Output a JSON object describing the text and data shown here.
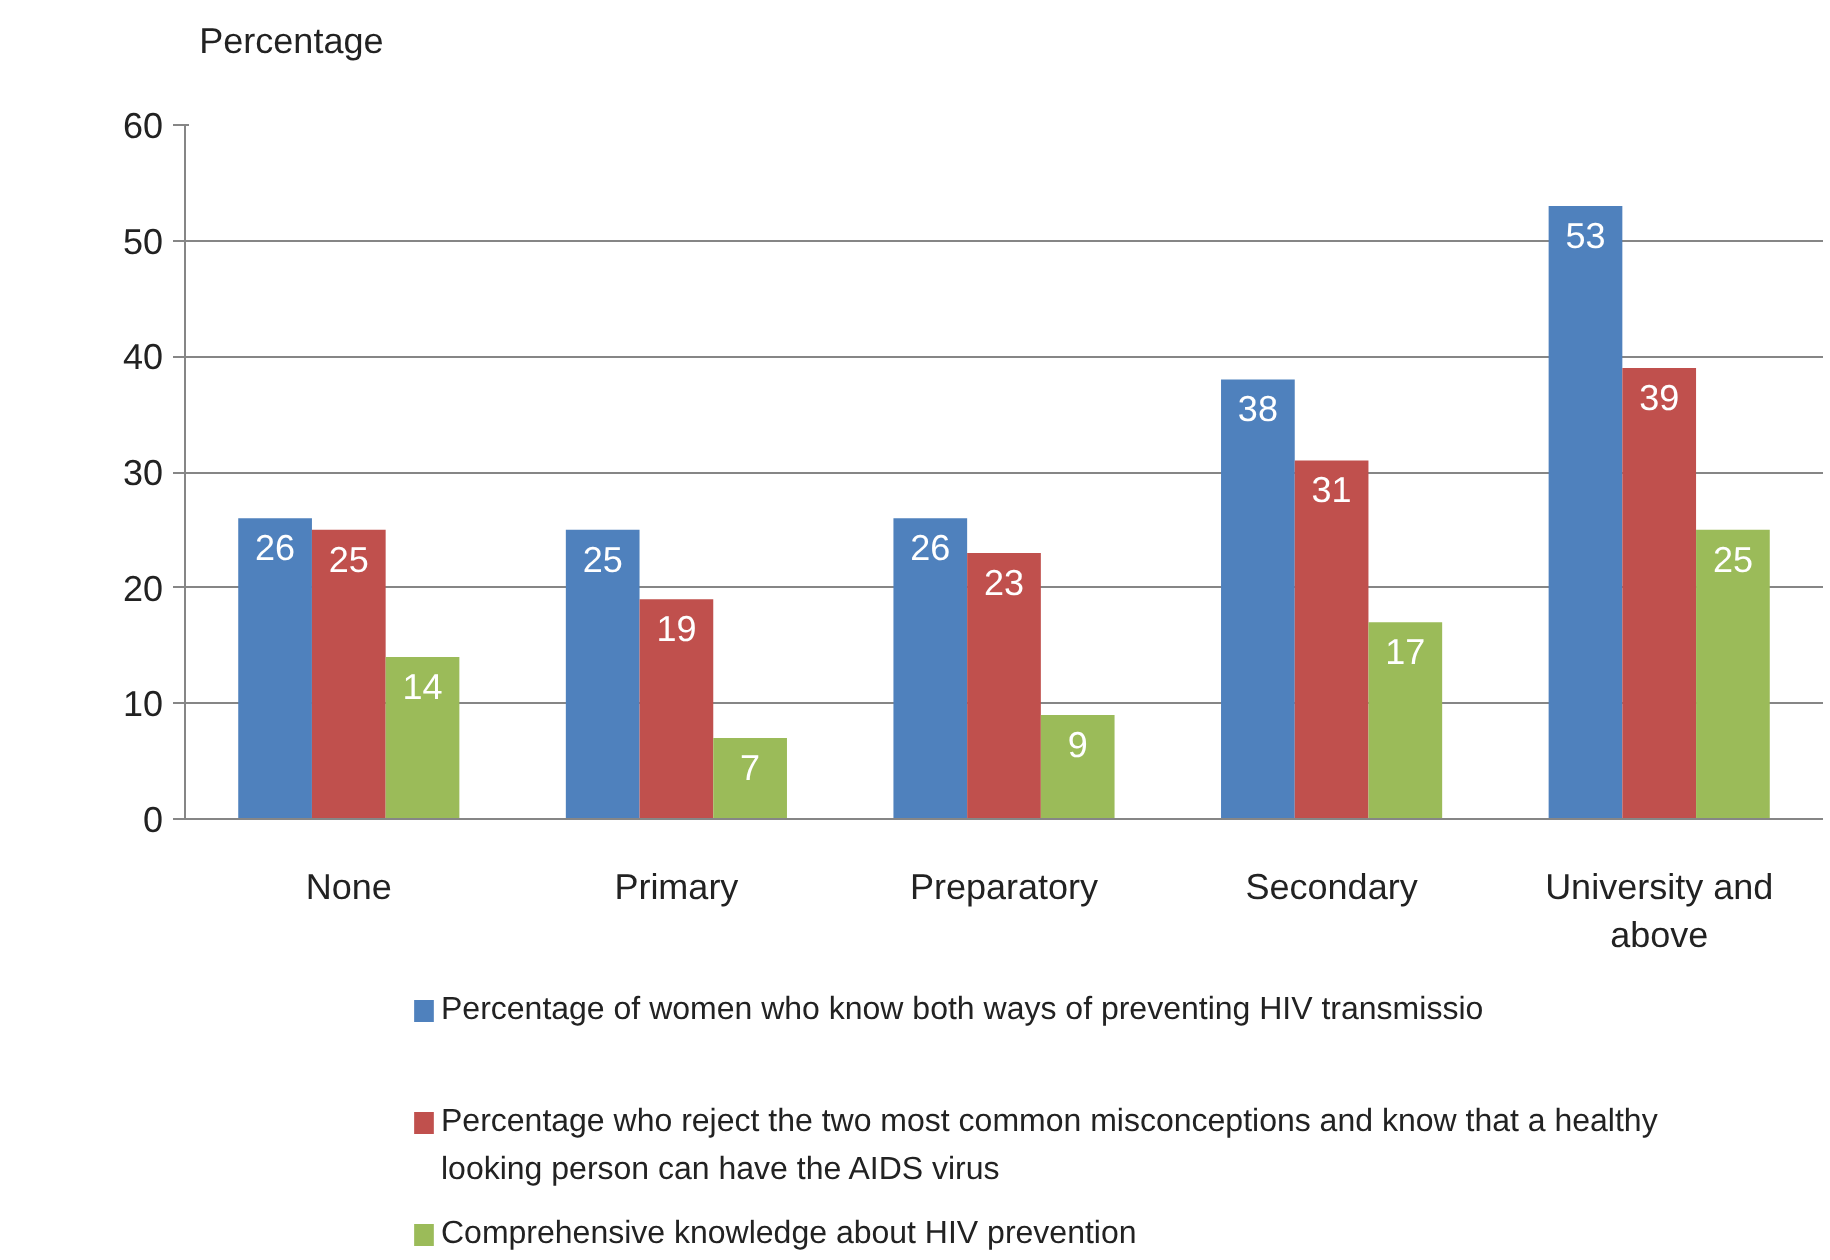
{
  "chart_data": {
    "type": "bar",
    "ylabel": "Percentage",
    "categories": [
      "None",
      "Primary",
      "Preparatory",
      "Secondary",
      "University and above"
    ],
    "series": [
      {
        "name": "Percentage of women who know both ways of preventing HIV transmissio",
        "color": "#4f81bd",
        "values": [
          26,
          25,
          26,
          38,
          53
        ]
      },
      {
        "name": "Percentage who reject the two most common misconceptions and know that a healthy looking person can have the AIDS virus",
        "color": "#c0504d",
        "values": [
          25,
          19,
          23,
          31,
          39
        ]
      },
      {
        "name": "Comprehensive knowledge about HIV prevention",
        "color": "#9bbb59",
        "values": [
          14,
          7,
          9,
          17,
          25
        ]
      }
    ],
    "ylim": [
      0,
      60
    ],
    "yticks": [
      0,
      10,
      20,
      30,
      40,
      50,
      60
    ],
    "grid": "y",
    "legend": "bottom",
    "data_labels": true
  }
}
